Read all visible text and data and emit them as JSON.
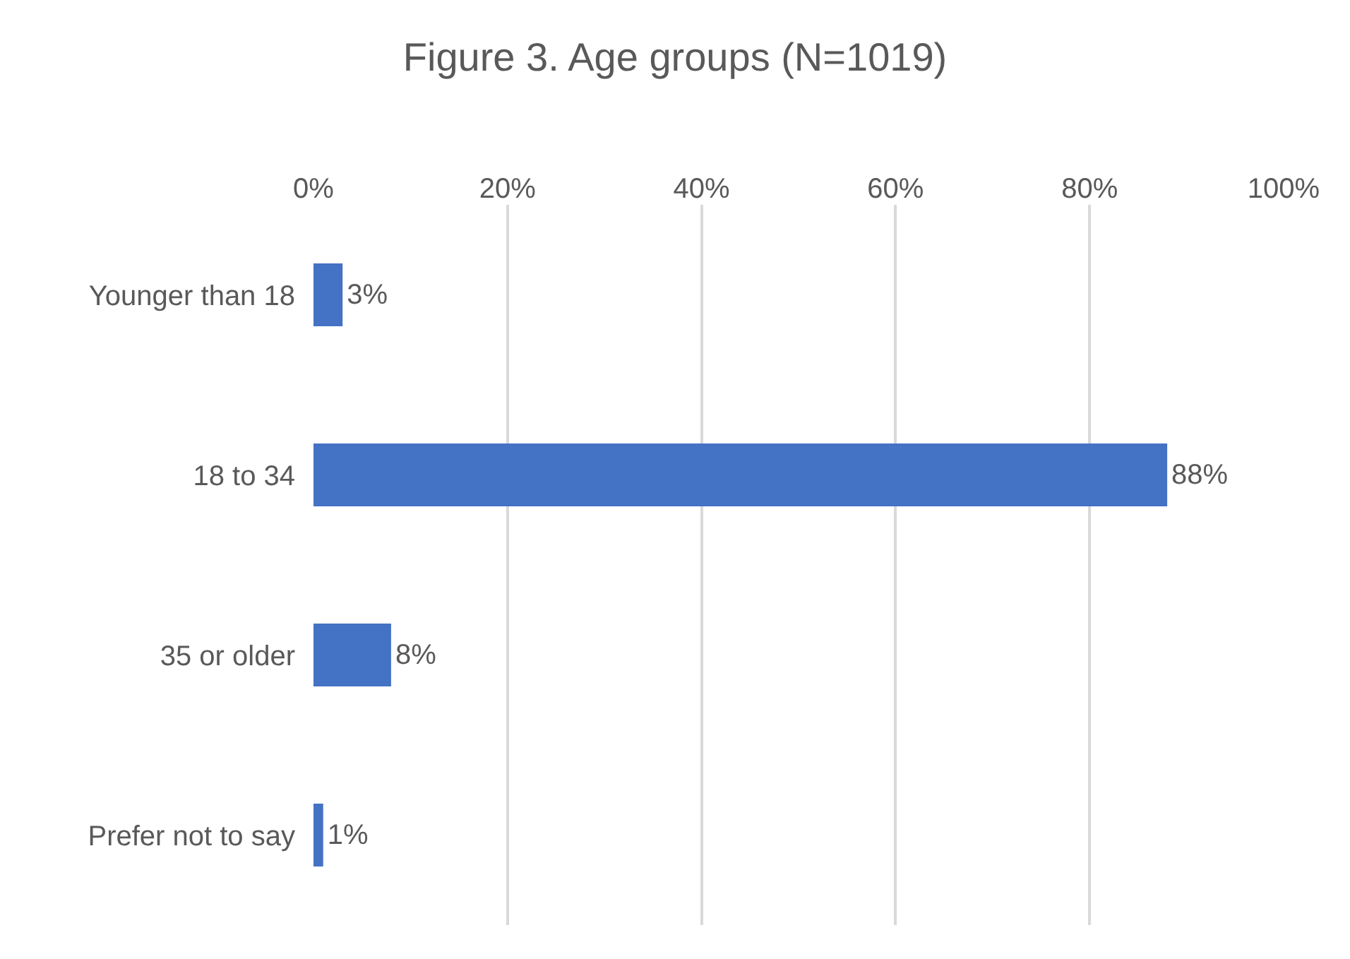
{
  "chart_data": {
    "type": "bar",
    "title": "Figure 3. Age groups (N=1019)",
    "orientation": "horizontal",
    "categories": [
      "Younger than 18",
      "18 to 34",
      "35 or older",
      "Prefer not to say"
    ],
    "values": [
      3,
      88,
      8,
      1
    ],
    "color": "#4472c4",
    "value_labels": [
      "3%",
      "88%",
      "8%",
      "1%"
    ],
    "xlim": [
      0,
      100
    ],
    "xticks": [
      {
        "value": 0,
        "label": "0%"
      },
      {
        "value": 20,
        "label": "20%"
      },
      {
        "value": 40,
        "label": "40%"
      },
      {
        "value": 60,
        "label": "60%"
      },
      {
        "value": 80,
        "label": "80%"
      },
      {
        "value": 100,
        "label": "100%"
      }
    ],
    "grid": "x",
    "legend": false
  }
}
